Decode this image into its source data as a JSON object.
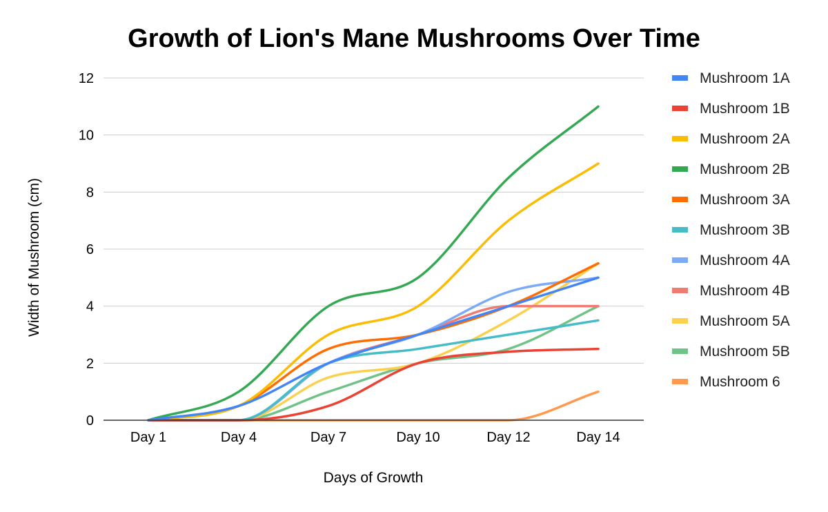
{
  "chart_data": {
    "type": "line",
    "title": "Growth of Lion's Mane Mushrooms Over Time",
    "xlabel": "Days of Growth",
    "ylabel": "Width of Mushroom (cm)",
    "categories": [
      "Day 1",
      "Day 4",
      "Day 7",
      "Day 10",
      "Day 12",
      "Day 14"
    ],
    "ylim": [
      0,
      12
    ],
    "yticks": [
      0,
      2,
      4,
      6,
      8,
      10,
      12
    ],
    "grid": true,
    "legend_position": "right",
    "series": [
      {
        "name": "Mushroom 1A",
        "color": "#4285F4",
        "values": [
          0,
          0.5,
          2,
          3,
          4,
          5
        ]
      },
      {
        "name": "Mushroom 1B",
        "color": "#EA4335",
        "values": [
          0,
          0,
          0.5,
          2,
          2.4,
          2.5
        ]
      },
      {
        "name": "Mushroom 2A",
        "color": "#FBBC04",
        "values": [
          0,
          0.5,
          3,
          4,
          7,
          9
        ]
      },
      {
        "name": "Mushroom 2B",
        "color": "#34A853",
        "values": [
          0,
          1,
          4,
          5,
          8.5,
          11
        ]
      },
      {
        "name": "Mushroom 3A",
        "color": "#FF6D01",
        "values": [
          0,
          0.5,
          2.5,
          3,
          4,
          5.5
        ]
      },
      {
        "name": "Mushroom 3B",
        "color": "#46BDC6",
        "values": [
          0,
          0,
          2,
          2.5,
          3,
          3.5
        ]
      },
      {
        "name": "Mushroom 4A",
        "color": "#7BAAF7",
        "values": [
          0,
          0,
          2,
          3,
          4.5,
          5
        ]
      },
      {
        "name": "Mushroom 4B",
        "color": "#F07B72",
        "values": [
          0,
          0,
          2,
          3,
          4,
          4
        ]
      },
      {
        "name": "Mushroom 5A",
        "color": "#FCD04F",
        "values": [
          0,
          0,
          1.5,
          2,
          3.5,
          5.5
        ]
      },
      {
        "name": "Mushroom 5B",
        "color": "#71C287",
        "values": [
          0,
          0,
          1,
          2,
          2.5,
          4
        ]
      },
      {
        "name": "Mushroom 6",
        "color": "#FF994D",
        "values": [
          0,
          0,
          0,
          0,
          0,
          1
        ]
      }
    ]
  }
}
